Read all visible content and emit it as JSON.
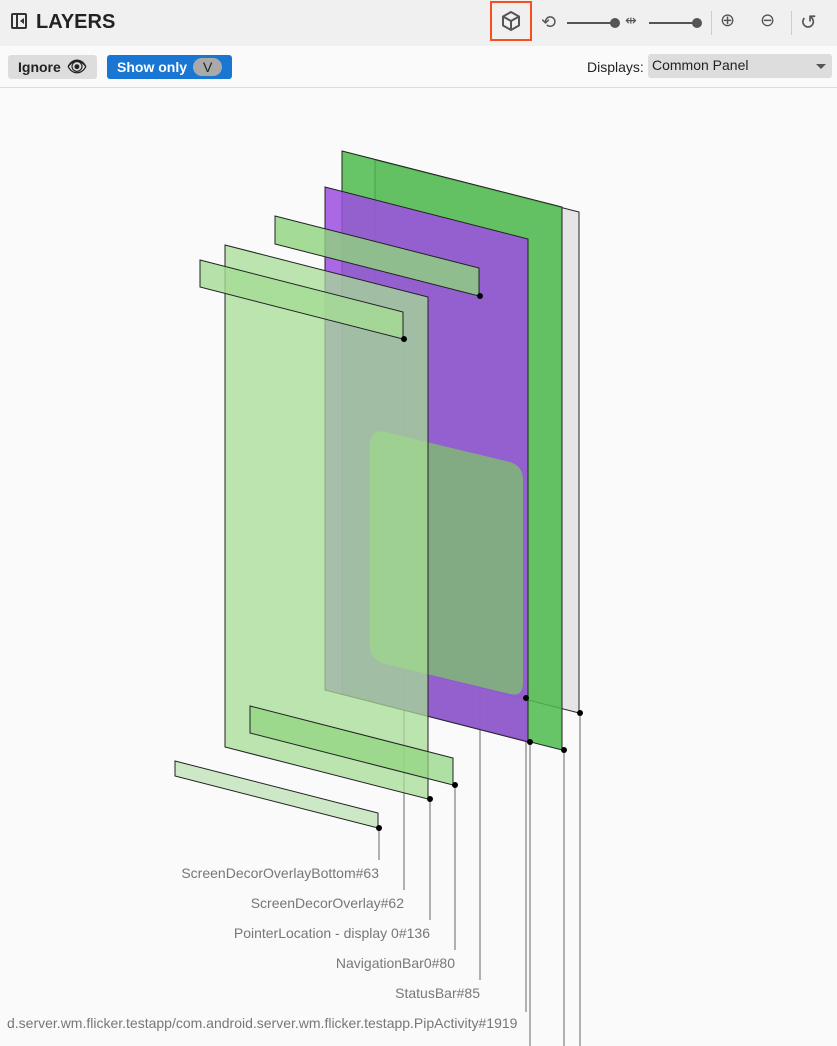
{
  "header": {
    "title": "LAYERS",
    "icons": [
      "collapse-panel-icon",
      "cube-3d-icon",
      "rotation-icon",
      "spacing-icon",
      "zoom-in-icon",
      "zoom-out-icon",
      "reset-history-icon"
    ],
    "rotation_level": 1.0,
    "spacing_level": 1.0
  },
  "toolbar": {
    "ignore_label": "Ignore",
    "show_only_label": "Show only",
    "show_only_chip": "V",
    "displays_label": "Displays:",
    "displays_value": "Common Panel"
  },
  "layers": [
    {
      "label": "ScreenDecorOverlayBottom#63",
      "color": "#c8e6c0"
    },
    {
      "label": "ScreenDecorOverlay#62",
      "color": "#a5dc95"
    },
    {
      "label": "PointerLocation - display 0#136",
      "color": "#a5dc95"
    },
    {
      "label": "NavigationBar0#80",
      "color": "#8fd47e"
    },
    {
      "label": "StatusBar#85",
      "color": "#8fd47e"
    },
    {
      "label": "d.server.wm.flicker.testapp/com.android.server.wm.flicker.testapp.PipActivity#1919",
      "color": "#7cc46a"
    }
  ],
  "colors": {
    "green": "#4cbb4c",
    "purple": "#9c4de0",
    "accent": "#1976d2",
    "highlight": "#f4511e"
  }
}
